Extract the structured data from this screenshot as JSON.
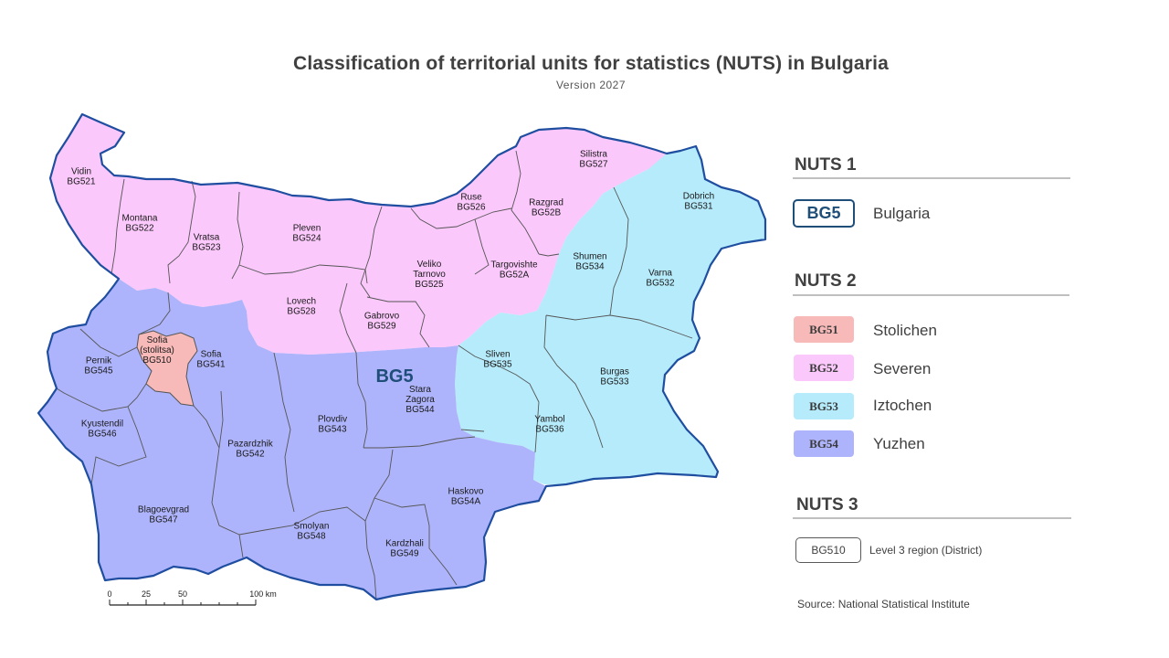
{
  "title": "Classification  of territorial  units for statistics (NUTS) in Bulgaria",
  "subtitle": "Version  2027",
  "colors": {
    "stolichen": "#f8b9b9",
    "severen": "#fbc8fb",
    "iztochen": "#b5ebfb",
    "yuzhen": "#aeb4fb",
    "country_border": "#1f4ea0",
    "district_border": "#555555",
    "nuts1_text": "#1f4e79"
  },
  "map": {
    "nuts1_label": "BG5",
    "regions": [
      {
        "name": "Vidin",
        "code": "BG521"
      },
      {
        "name": "Montana",
        "code": "BG522"
      },
      {
        "name": "Vratsa",
        "code": "BG523"
      },
      {
        "name": "Pleven",
        "code": "BG524"
      },
      {
        "name": "Veliko Tarnovo",
        "code": "BG525"
      },
      {
        "name": "Ruse",
        "code": "BG526"
      },
      {
        "name": "Silistra",
        "code": "BG527"
      },
      {
        "name": "Lovech",
        "code": "BG528"
      },
      {
        "name": "Gabrovo",
        "code": "BG529"
      },
      {
        "name": "Targovishte",
        "code": "BG52A"
      },
      {
        "name": "Razgrad",
        "code": "BG52B"
      },
      {
        "name": "Dobrich",
        "code": "BG531"
      },
      {
        "name": "Varna",
        "code": "BG532"
      },
      {
        "name": "Shumen",
        "code": "BG534"
      },
      {
        "name": "Sliven",
        "code": "BG535"
      },
      {
        "name": "Burgas",
        "code": "BG533"
      },
      {
        "name": "Yambol",
        "code": "BG536"
      },
      {
        "name": "Sofia (stolitsa)",
        "code": "BG510"
      },
      {
        "name": "Sofia",
        "code": "BG541"
      },
      {
        "name": "Pernik",
        "code": "BG545"
      },
      {
        "name": "Kyustendil",
        "code": "BG546"
      },
      {
        "name": "Pazardzhik",
        "code": "BG542"
      },
      {
        "name": "Plovdiv",
        "code": "BG543"
      },
      {
        "name": "Stara Zagora",
        "code": "BG544"
      },
      {
        "name": "Blagoevgrad",
        "code": "BG547"
      },
      {
        "name": "Smolyan",
        "code": "BG548"
      },
      {
        "name": "Kardzhali",
        "code": "BG549"
      },
      {
        "name": "Haskovo",
        "code": "BG54A"
      }
    ],
    "scale_bar": {
      "ticks": [
        "0",
        "25",
        "50",
        "100 km"
      ]
    }
  },
  "legend": {
    "nuts1": {
      "heading": "NUTS 1",
      "code": "BG5",
      "label": "Bulgaria"
    },
    "nuts2": {
      "heading": "NUTS 2",
      "items": [
        {
          "code": "BG51",
          "label": "Stolichen"
        },
        {
          "code": "BG52",
          "label": "Severen"
        },
        {
          "code": "BG53",
          "label": "Iztochen"
        },
        {
          "code": "BG54",
          "label": "Yuzhen"
        }
      ]
    },
    "nuts3": {
      "heading": "NUTS 3",
      "code": "BG510",
      "label": "Level  3 region  (District)"
    }
  },
  "source": "Source: National Statistical Institute"
}
